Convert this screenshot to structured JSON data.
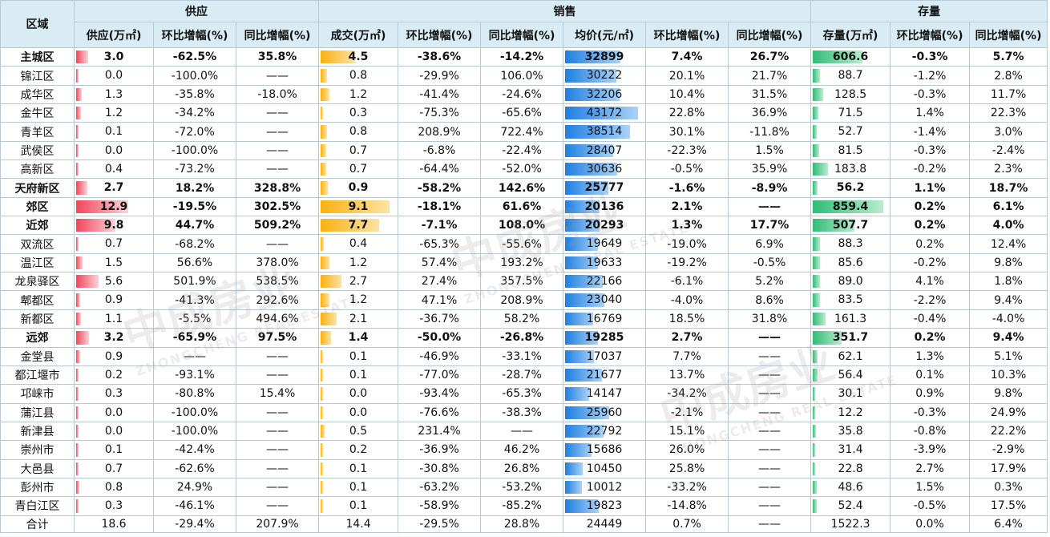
{
  "header": {
    "region": "区域",
    "group_supply": "供应",
    "group_sales": "销售",
    "group_stock": "存量",
    "supply_cols": [
      "供应(万㎡)",
      "环比增幅(%)",
      "同比增幅(%)"
    ],
    "sales_cols": [
      "成交(万㎡)",
      "环比增幅(%)",
      "同比增幅(%)",
      "均价(元/㎡)",
      "环比增幅(%)",
      "同比增幅(%)"
    ],
    "stock_cols": [
      "存量(万㎡)",
      "环比增幅(%)",
      "同比增幅(%)"
    ]
  },
  "rows": [
    {
      "bold": true,
      "cells": [
        "主城区",
        "3.0",
        "-62.5%",
        "35.8%",
        "4.5",
        "-38.6%",
        "-14.2%",
        "32899",
        "7.4%",
        "26.7%",
        "606.6",
        "-0.3%",
        "5.7%"
      ]
    },
    {
      "bold": false,
      "cells": [
        "锦江区",
        "0.0",
        "-100.0%",
        "——",
        "0.8",
        "-29.9%",
        "106.0%",
        "30222",
        "20.1%",
        "21.7%",
        "88.7",
        "-1.2%",
        "2.8%"
      ]
    },
    {
      "bold": false,
      "cells": [
        "成华区",
        "1.3",
        "-35.8%",
        "-18.0%",
        "1.2",
        "-41.4%",
        "-24.6%",
        "32206",
        "10.4%",
        "31.5%",
        "128.5",
        "-0.3%",
        "11.7%"
      ]
    },
    {
      "bold": false,
      "cells": [
        "金牛区",
        "1.2",
        "-34.2%",
        "——",
        "0.3",
        "-75.3%",
        "-65.6%",
        "43172",
        "22.8%",
        "36.9%",
        "71.5",
        "1.4%",
        "22.3%"
      ]
    },
    {
      "bold": false,
      "cells": [
        "青羊区",
        "0.1",
        "-72.0%",
        "——",
        "0.8",
        "208.9%",
        "722.4%",
        "38514",
        "30.1%",
        "-11.8%",
        "52.7",
        "-1.4%",
        "3.0%"
      ]
    },
    {
      "bold": false,
      "cells": [
        "武侯区",
        "0.0",
        "-100.0%",
        "——",
        "0.7",
        "-6.8%",
        "-22.4%",
        "28407",
        "-22.3%",
        "1.5%",
        "81.5",
        "-0.3%",
        "-2.4%"
      ]
    },
    {
      "bold": false,
      "cells": [
        "高新区",
        "0.4",
        "-73.2%",
        "——",
        "0.7",
        "-64.4%",
        "-52.0%",
        "30636",
        "-0.5%",
        "35.9%",
        "183.8",
        "-0.2%",
        "2.3%"
      ]
    },
    {
      "bold": true,
      "cells": [
        "天府新区",
        "2.7",
        "18.2%",
        "328.8%",
        "0.9",
        "-58.2%",
        "142.6%",
        "25777",
        "-1.6%",
        "-8.9%",
        "56.2",
        "1.1%",
        "18.7%"
      ]
    },
    {
      "bold": true,
      "cells": [
        "郊区",
        "12.9",
        "-19.5%",
        "302.5%",
        "9.1",
        "-18.1%",
        "61.6%",
        "20136",
        "2.1%",
        "——",
        "859.4",
        "0.2%",
        "6.1%"
      ]
    },
    {
      "bold": true,
      "cells": [
        "近郊",
        "9.8",
        "44.7%",
        "509.2%",
        "7.7",
        "-7.1%",
        "108.0%",
        "20293",
        "1.3%",
        "17.7%",
        "507.7",
        "0.2%",
        "4.0%"
      ]
    },
    {
      "bold": false,
      "cells": [
        "双流区",
        "0.7",
        "-68.2%",
        "——",
        "0.4",
        "-65.3%",
        "-55.6%",
        "19649",
        "-19.0%",
        "6.9%",
        "88.3",
        "0.2%",
        "12.4%"
      ]
    },
    {
      "bold": false,
      "cells": [
        "温江区",
        "1.5",
        "56.6%",
        "378.0%",
        "1.2",
        "57.4%",
        "193.2%",
        "19633",
        "-19.2%",
        "-0.5%",
        "85.6",
        "-0.2%",
        "9.8%"
      ]
    },
    {
      "bold": false,
      "cells": [
        "龙泉驿区",
        "5.6",
        "501.9%",
        "538.5%",
        "2.7",
        "27.4%",
        "357.5%",
        "22166",
        "-6.1%",
        "5.2%",
        "89.0",
        "4.1%",
        "1.8%"
      ]
    },
    {
      "bold": false,
      "cells": [
        "郫都区",
        "0.9",
        "-41.3%",
        "292.6%",
        "1.2",
        "47.1%",
        "208.9%",
        "23040",
        "-4.0%",
        "8.6%",
        "83.5",
        "-2.2%",
        "9.4%"
      ]
    },
    {
      "bold": false,
      "cells": [
        "新都区",
        "1.1",
        "-5.5%",
        "494.6%",
        "2.1",
        "-36.7%",
        "58.2%",
        "16769",
        "18.5%",
        "31.8%",
        "161.3",
        "-0.4%",
        "-4.0%"
      ]
    },
    {
      "bold": true,
      "cells": [
        "远郊",
        "3.2",
        "-65.9%",
        "97.5%",
        "1.4",
        "-50.0%",
        "-26.8%",
        "19285",
        "2.7%",
        "——",
        "351.7",
        "0.2%",
        "9.4%"
      ]
    },
    {
      "bold": false,
      "cells": [
        "金堂县",
        "0.9",
        "——",
        "——",
        "0.1",
        "-46.9%",
        "-33.1%",
        "17037",
        "7.7%",
        "——",
        "62.1",
        "1.3%",
        "5.1%"
      ]
    },
    {
      "bold": false,
      "cells": [
        "都江堰市",
        "0.2",
        "-93.1%",
        "——",
        "0.1",
        "-77.0%",
        "-28.7%",
        "21677",
        "13.7%",
        "——",
        "56.4",
        "0.1%",
        "10.3%"
      ]
    },
    {
      "bold": false,
      "cells": [
        "邛崃市",
        "0.3",
        "-80.8%",
        "15.4%",
        "0.0",
        "-93.4%",
        "-65.3%",
        "14147",
        "-34.2%",
        "——",
        "30.1",
        "0.9%",
        "9.8%"
      ]
    },
    {
      "bold": false,
      "cells": [
        "蒲江县",
        "0.0",
        "-100.0%",
        "——",
        "0.0",
        "-76.6%",
        "-38.3%",
        "25960",
        "-2.1%",
        "——",
        "12.2",
        "-0.3%",
        "24.9%"
      ]
    },
    {
      "bold": false,
      "cells": [
        "新津县",
        "0.0",
        "-100.0%",
        "——",
        "0.5",
        "231.4%",
        "——",
        "22792",
        "15.1%",
        "——",
        "35.8",
        "-0.8%",
        "22.2%"
      ]
    },
    {
      "bold": false,
      "cells": [
        "崇州市",
        "0.1",
        "-42.4%",
        "——",
        "0.2",
        "-36.9%",
        "46.2%",
        "15686",
        "26.0%",
        "——",
        "31.4",
        "-3.9%",
        "-2.9%"
      ]
    },
    {
      "bold": false,
      "cells": [
        "大邑县",
        "0.7",
        "-62.6%",
        "——",
        "0.1",
        "-30.8%",
        "26.8%",
        "10450",
        "25.8%",
        "——",
        "22.8",
        "2.7%",
        "17.9%"
      ]
    },
    {
      "bold": false,
      "cells": [
        "彭州市",
        "0.8",
        "24.9%",
        "——",
        "0.1",
        "-63.2%",
        "-53.2%",
        "10012",
        "-33.2%",
        "——",
        "48.6",
        "1.5%",
        "0.3%"
      ]
    },
    {
      "bold": false,
      "cells": [
        "青白江区",
        "0.3",
        "-46.1%",
        "——",
        "0.1",
        "-58.9%",
        "-85.2%",
        "19823",
        "-14.8%",
        "——",
        "52.4",
        "-0.5%",
        "17.5%"
      ]
    }
  ],
  "total": [
    "合计",
    "18.6",
    "-29.4%",
    "207.9%",
    "14.4",
    "-29.5%",
    "28.8%",
    "24449",
    "0.7%",
    "——",
    "1522.3",
    "0.0%",
    "6.4%"
  ],
  "watermark_text": [
    "中成房业",
    "ZHONGCHENG REAL ESTATE"
  ],
  "colors": {
    "supply_bar": "#f0455a",
    "sales_bar": "#f9b10d",
    "price_bar": "#1e7fe0",
    "stock_bar": "#2fbd76",
    "header_bg": "#d9ecf3"
  }
}
